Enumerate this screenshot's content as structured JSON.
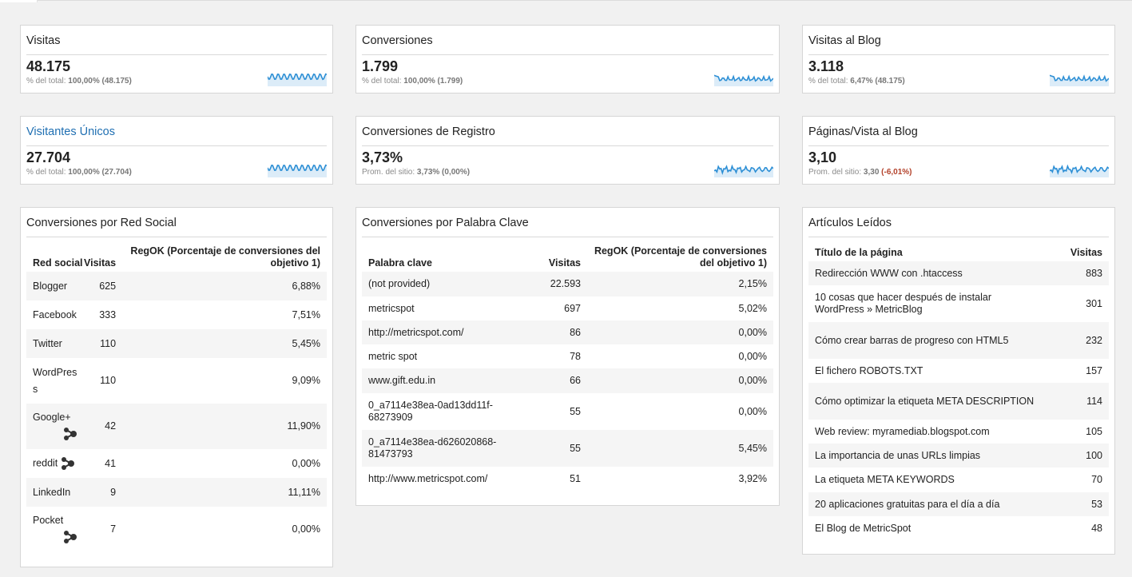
{
  "metrics": [
    {
      "title": "Visitas",
      "value": "48.175",
      "sub_prefix": "% del total:",
      "sub_value": "100,00% (48.175)",
      "spark": "rounded"
    },
    {
      "title": "Conversiones",
      "value": "1.799",
      "sub_prefix": "% del total:",
      "sub_value": "100,00% (1.799)",
      "spark": "jagged"
    },
    {
      "title": "Visitas al Blog",
      "value": "3.118",
      "sub_prefix": "% del total:",
      "sub_value": "6,47% (48.175)",
      "spark": "jagged"
    },
    {
      "title": "Visitantes Únicos",
      "value": "27.704",
      "sub_prefix": "% del total:",
      "sub_value": "100,00% (27.704)",
      "spark": "rounded"
    },
    {
      "title": "Conversiones de Registro",
      "value": "3,73%",
      "sub_prefix": "Prom. del sitio:",
      "sub_value": "3,73% (0,00%)",
      "spark": "noisy"
    },
    {
      "title": "Páginas/Vista al Blog",
      "value": "3,10",
      "sub_prefix": "Prom. del sitio:",
      "sub_value": "3,30",
      "sub_delta": "(-6,01%)",
      "spark": "noisy"
    }
  ],
  "social": {
    "title": "Conversiones por Red Social",
    "headers": [
      "Red social",
      "Visitas",
      "RegOK (Porcentaje de conversiones del objetivo 1)"
    ],
    "rows": [
      {
        "name": "Blogger",
        "visits": "625",
        "rate": "6,88%"
      },
      {
        "name": "Facebook",
        "visits": "333",
        "rate": "7,51%"
      },
      {
        "name": "Twitter",
        "visits": "110",
        "rate": "5,45%"
      },
      {
        "name": "WordPress",
        "visits": "110",
        "rate": "9,09%"
      },
      {
        "name": "Google+",
        "visits": "42",
        "rate": "11,90%"
      },
      {
        "name": "reddit",
        "visits": "41",
        "rate": "0,00%"
      },
      {
        "name": "LinkedIn",
        "visits": "9",
        "rate": "11,11%"
      },
      {
        "name": "Pocket",
        "visits": "7",
        "rate": "0,00%"
      }
    ]
  },
  "keywords": {
    "title": "Conversiones por Palabra Clave",
    "headers": [
      "Palabra clave",
      "Visitas",
      "RegOK (Porcentaje de conversiones del objetivo 1)"
    ],
    "rows": [
      {
        "name": "(not provided)",
        "visits": "22.593",
        "rate": "2,15%"
      },
      {
        "name": "metricspot",
        "visits": "697",
        "rate": "5,02%"
      },
      {
        "name": "http://metricspot.com/",
        "visits": "86",
        "rate": "0,00%"
      },
      {
        "name": "metric spot",
        "visits": "78",
        "rate": "0,00%"
      },
      {
        "name": "www.gift.edu.in",
        "visits": "66",
        "rate": "0,00%"
      },
      {
        "name": "0_a7114e38ea-0ad13dd11f-68273909",
        "visits": "55",
        "rate": "0,00%"
      },
      {
        "name": "0_a7114e38ea-d626020868-81473793",
        "visits": "55",
        "rate": "5,45%"
      },
      {
        "name": "http://www.metricspot.com/",
        "visits": "51",
        "rate": "3,92%"
      }
    ]
  },
  "articles": {
    "title": "Artículos Leídos",
    "headers": [
      "Título de la página",
      "Visitas"
    ],
    "rows": [
      {
        "name": "Redirección WWW con .htaccess",
        "visits": "883"
      },
      {
        "name": "10 cosas que hacer después de instalar WordPress » MetricBlog",
        "visits": "301"
      },
      {
        "name": "Cómo crear barras de progreso con HTML5",
        "visits": "232"
      },
      {
        "name": "El fichero ROBOTS.TXT",
        "visits": "157"
      },
      {
        "name": "Cómo optimizar la etiqueta META DESCRIPTION",
        "visits": "114"
      },
      {
        "name": "Web review: myramediab.blogspot.com",
        "visits": "105"
      },
      {
        "name": "La importancia de unas URLs limpias",
        "visits": "100"
      },
      {
        "name": "La etiqueta META KEYWORDS",
        "visits": "70"
      },
      {
        "name": "20 aplicaciones gratuitas para el día a día",
        "visits": "53"
      },
      {
        "name": "El Blog de MetricSpot",
        "visits": "48"
      }
    ]
  },
  "colors": {
    "spark_line": "#2d8fd5",
    "spark_fill": "#dcecf8",
    "link": "#1f6fb2",
    "negative": "#b3412a"
  },
  "icons": {
    "share": "share-icon"
  }
}
